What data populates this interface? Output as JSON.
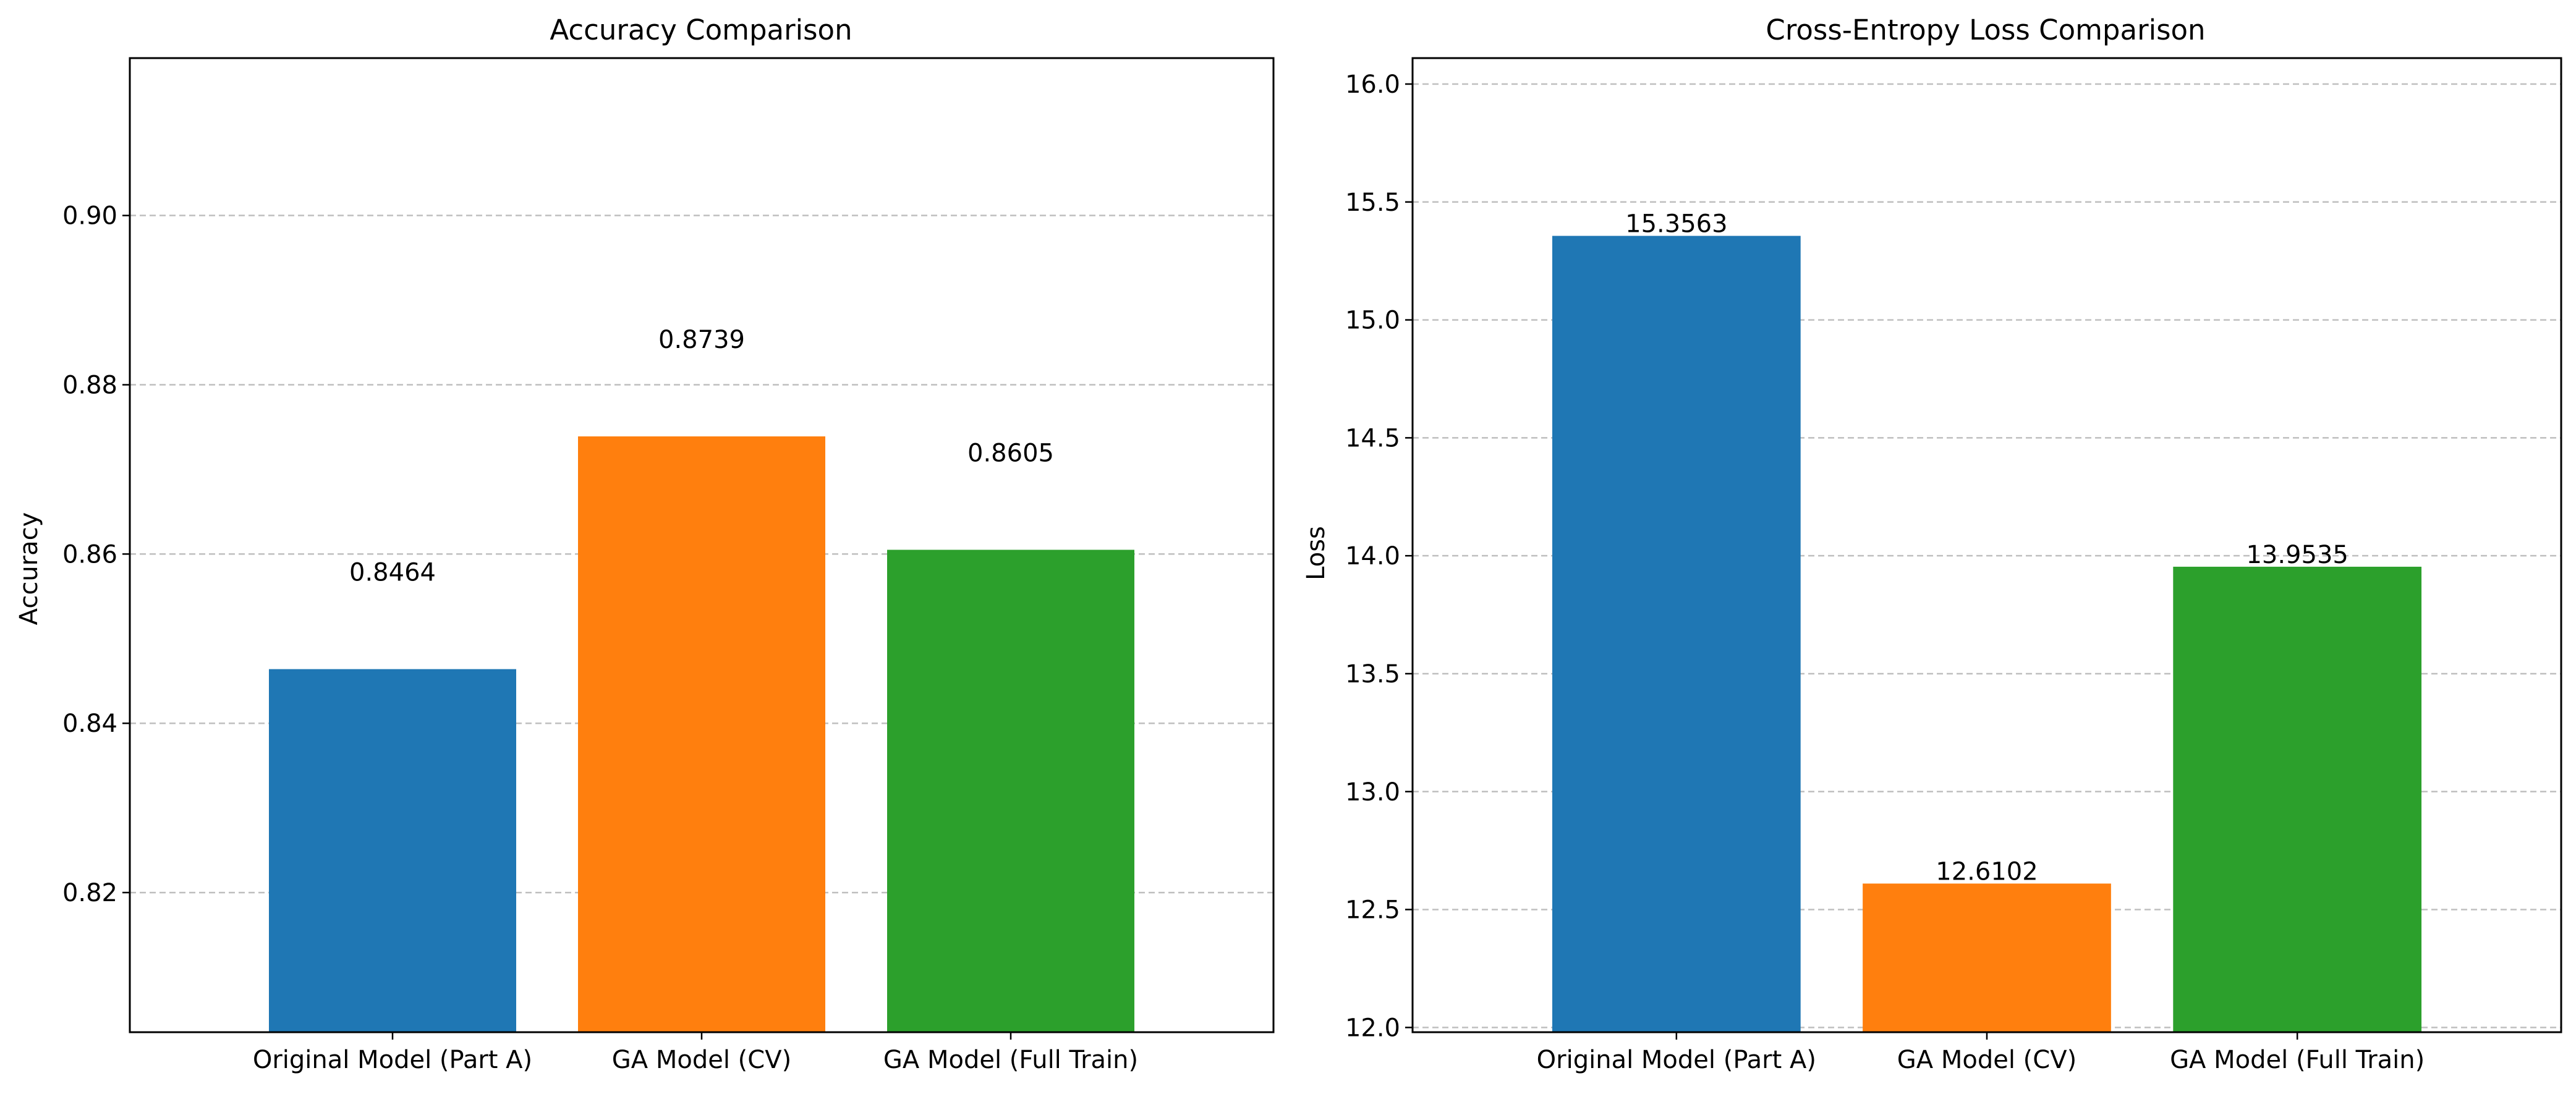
{
  "colors": {
    "blue": "#1f77b4",
    "orange": "#ff7f0e",
    "green": "#2ca02c"
  },
  "chart_data": [
    {
      "type": "bar",
      "title": "Accuracy Comparison",
      "xlabel": "",
      "ylabel": "Accuracy",
      "categories": [
        "Original Model (Part A)",
        "GA Model (CV)",
        "GA Model (Full Train)"
      ],
      "values": [
        0.8464,
        0.8739,
        0.8605
      ],
      "value_labels": [
        "0.8464",
        "0.8739",
        "0.8605"
      ],
      "label_offset": 0.01,
      "ylim": [
        0.8035,
        0.9186
      ],
      "yticks": [
        0.82,
        0.84,
        0.86,
        0.88,
        0.9
      ],
      "ytick_labels": [
        "0.82",
        "0.84",
        "0.86",
        "0.88",
        "0.90"
      ],
      "bar_colors": [
        "#1f77b4",
        "#ff7f0e",
        "#2ca02c"
      ],
      "grid": "y-dashed",
      "legend": "none"
    },
    {
      "type": "bar",
      "title": "Cross-Entropy Loss Comparison",
      "xlabel": "",
      "ylabel": "Loss",
      "categories": [
        "Original Model (Part A)",
        "GA Model (CV)",
        "GA Model (Full Train)"
      ],
      "values": [
        15.3563,
        12.6102,
        13.9535
      ],
      "value_labels": [
        "15.3563",
        "12.6102",
        "13.9535"
      ],
      "label_offset": 0.0,
      "ylim": [
        11.98,
        16.11
      ],
      "yticks": [
        12.0,
        12.5,
        13.0,
        13.5,
        14.0,
        14.5,
        15.0,
        15.5,
        16.0
      ],
      "ytick_labels": [
        "12.0",
        "12.5",
        "13.0",
        "13.5",
        "14.0",
        "14.5",
        "15.0",
        "15.5",
        "16.0"
      ],
      "bar_colors": [
        "#1f77b4",
        "#ff7f0e",
        "#2ca02c"
      ],
      "grid": "y-dashed",
      "legend": "none"
    }
  ]
}
